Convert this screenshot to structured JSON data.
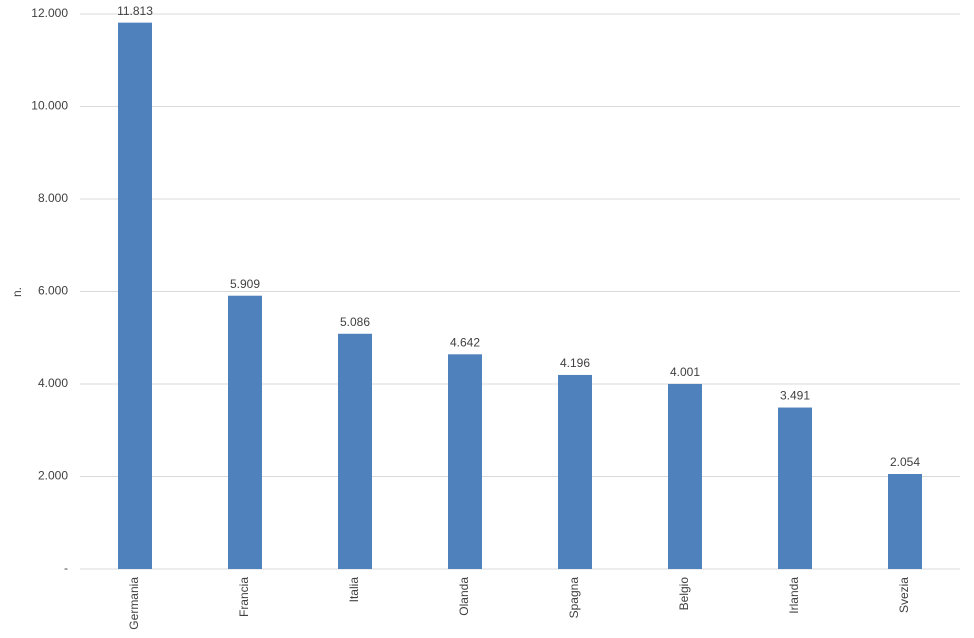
{
  "chart_data": {
    "type": "bar",
    "y_label": "n.",
    "categories": [
      "Germania",
      "Francia",
      "Italia",
      "Olanda",
      "Spagna",
      "Belgio",
      "Irlanda",
      "Svezia"
    ],
    "values": [
      11813,
      5909,
      5086,
      4642,
      4196,
      4001,
      3491,
      2054
    ],
    "value_labels": [
      "11.813",
      "5.909",
      "5.086",
      "4.642",
      "4.196",
      "4.001",
      "3.491",
      "2.054"
    ],
    "color": "#4f81bd",
    "ylim": [
      0,
      12000
    ],
    "yticks": [
      {
        "value": 0,
        "label": "-"
      },
      {
        "value": 2000,
        "label": "2.000"
      },
      {
        "value": 4000,
        "label": "4.000"
      },
      {
        "value": 6000,
        "label": "6.000"
      },
      {
        "value": 8000,
        "label": "8.000"
      },
      {
        "value": 10000,
        "label": "10.000"
      },
      {
        "value": 12000,
        "label": "12.000"
      }
    ],
    "grid": true
  }
}
